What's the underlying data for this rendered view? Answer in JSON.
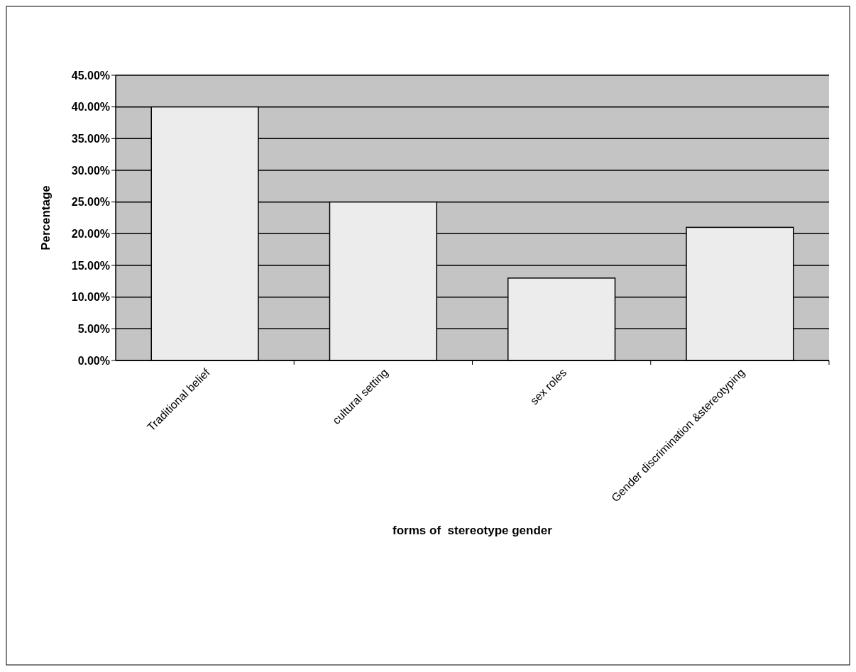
{
  "chart_data": {
    "type": "bar",
    "xlabel": "forms of  stereotype gender",
    "ylabel": "Percentage",
    "categories": [
      "Traditional belief",
      "cultural setting",
      "sex roles",
      "Gender discrimination &stereotyping"
    ],
    "values": [
      40,
      25,
      13,
      21
    ],
    "color": "#ececec",
    "ylim": [
      0,
      45
    ],
    "yticks": [
      {
        "value": 0,
        "label": "0.00%"
      },
      {
        "value": 5,
        "label": "5.00%"
      },
      {
        "value": 10,
        "label": "10.00%"
      },
      {
        "value": 15,
        "label": "15.00%"
      },
      {
        "value": 20,
        "label": "20.00%"
      },
      {
        "value": 25,
        "label": "25.00%"
      },
      {
        "value": 30,
        "label": "30.00%"
      },
      {
        "value": 35,
        "label": "35.00%"
      },
      {
        "value": 40,
        "label": "40.00%"
      },
      {
        "value": 45,
        "label": "45.00%"
      }
    ],
    "grid": "y"
  }
}
